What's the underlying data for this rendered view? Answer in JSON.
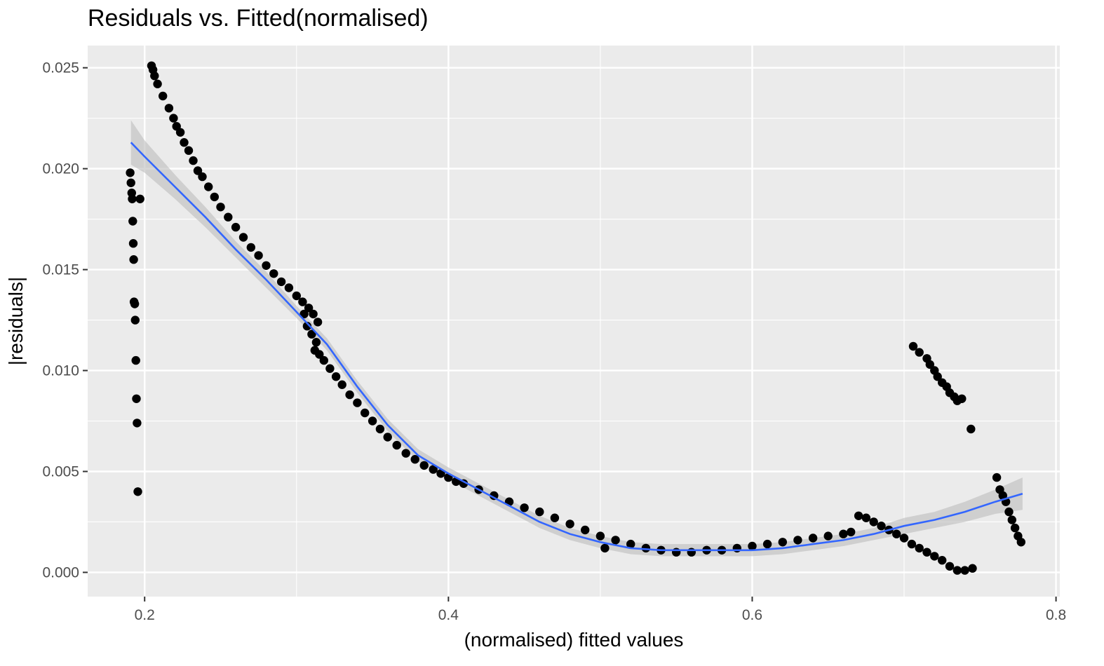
{
  "chart_data": {
    "type": "scatter",
    "title": "Residuals vs. Fitted(normalised)",
    "xlabel": "(normalised) fitted values",
    "ylabel": "|residuals|",
    "xlim": [
      0.1625,
      0.8025
    ],
    "ylim": [
      -0.0012,
      0.0261
    ],
    "x_ticks": [
      0.2,
      0.4,
      0.6,
      0.8
    ],
    "x_tick_labels": [
      "0.2",
      "0.4",
      "0.6",
      "0.8"
    ],
    "y_ticks": [
      0.0,
      0.005,
      0.01,
      0.015,
      0.02,
      0.025
    ],
    "y_tick_labels": [
      "0.000",
      "0.005",
      "0.010",
      "0.015",
      "0.020",
      "0.025"
    ],
    "grid": true,
    "legend": "none",
    "colors": {
      "panel": "#ebebeb",
      "grid": "#ffffff",
      "points": "#000000",
      "smooth_line": "#3366ff",
      "confidence_band": "#bdbdbd"
    },
    "series": [
      {
        "type": "scatter",
        "values_description_free": true,
        "x": [
          0.1905,
          0.191,
          0.1915,
          0.1918,
          0.1922,
          0.1925,
          0.1928,
          0.193,
          0.1935,
          0.1938,
          0.1942,
          0.1946,
          0.195,
          0.1955,
          0.197,
          0.2045,
          0.2055,
          0.2065,
          0.2085,
          0.212,
          0.216,
          0.219,
          0.221,
          0.2235,
          0.226,
          0.229,
          0.232,
          0.235,
          0.238,
          0.242,
          0.246,
          0.25,
          0.255,
          0.26,
          0.265,
          0.27,
          0.275,
          0.28,
          0.285,
          0.29,
          0.295,
          0.3,
          0.304,
          0.308,
          0.311,
          0.314,
          0.305,
          0.31,
          0.313,
          0.307,
          0.312,
          0.315,
          0.318,
          0.322,
          0.326,
          0.33,
          0.335,
          0.34,
          0.345,
          0.35,
          0.355,
          0.36,
          0.366,
          0.372,
          0.378,
          0.384,
          0.39,
          0.395,
          0.4,
          0.405,
          0.41,
          0.42,
          0.43,
          0.44,
          0.45,
          0.46,
          0.47,
          0.48,
          0.49,
          0.5,
          0.503,
          0.51,
          0.52,
          0.53,
          0.54,
          0.55,
          0.56,
          0.57,
          0.58,
          0.59,
          0.6,
          0.61,
          0.62,
          0.63,
          0.64,
          0.65,
          0.66,
          0.665,
          0.67,
          0.675,
          0.68,
          0.685,
          0.69,
          0.695,
          0.7,
          0.705,
          0.71,
          0.715,
          0.72,
          0.725,
          0.73,
          0.735,
          0.74,
          0.745,
          0.706,
          0.71,
          0.715,
          0.717,
          0.72,
          0.722,
          0.725,
          0.728,
          0.73,
          0.733,
          0.735,
          0.738,
          0.744,
          0.761,
          0.763,
          0.765,
          0.767,
          0.769,
          0.771,
          0.773,
          0.775,
          0.777
        ],
        "y": [
          0.0198,
          0.0193,
          0.0188,
          0.0185,
          0.0174,
          0.0163,
          0.0155,
          0.0134,
          0.0133,
          0.0125,
          0.0105,
          0.0086,
          0.0074,
          0.004,
          0.0185,
          0.0251,
          0.0249,
          0.0246,
          0.0242,
          0.0236,
          0.023,
          0.0225,
          0.0221,
          0.0218,
          0.0213,
          0.0209,
          0.0204,
          0.0199,
          0.0196,
          0.0191,
          0.0186,
          0.0181,
          0.0176,
          0.0171,
          0.0166,
          0.0161,
          0.0157,
          0.0152,
          0.0148,
          0.0144,
          0.0141,
          0.0137,
          0.0134,
          0.0131,
          0.0128,
          0.0124,
          0.0128,
          0.0118,
          0.0114,
          0.0122,
          0.011,
          0.0108,
          0.0105,
          0.0101,
          0.0097,
          0.0093,
          0.0088,
          0.0084,
          0.0079,
          0.0075,
          0.0071,
          0.0067,
          0.0063,
          0.0059,
          0.0056,
          0.0053,
          0.0051,
          0.0049,
          0.0047,
          0.0045,
          0.0044,
          0.0041,
          0.0038,
          0.0035,
          0.0032,
          0.003,
          0.0027,
          0.0024,
          0.0021,
          0.0018,
          0.0012,
          0.0016,
          0.0014,
          0.0012,
          0.0011,
          0.001,
          0.001,
          0.0011,
          0.0011,
          0.0012,
          0.0013,
          0.0014,
          0.0015,
          0.0016,
          0.0017,
          0.0018,
          0.0019,
          0.002,
          0.0028,
          0.0027,
          0.0025,
          0.0023,
          0.0021,
          0.0019,
          0.0017,
          0.0014,
          0.0012,
          0.001,
          0.0008,
          0.0006,
          0.0003,
          0.0001,
          0.0001,
          0.0002,
          0.0112,
          0.0109,
          0.0106,
          0.0103,
          0.01,
          0.0097,
          0.0094,
          0.0092,
          0.0089,
          0.0087,
          0.0085,
          0.0086,
          0.0071,
          0.0047,
          0.0041,
          0.0038,
          0.0035,
          0.003,
          0.0026,
          0.0022,
          0.0018,
          0.0015
        ]
      },
      {
        "type": "line",
        "x": [
          0.191,
          0.2,
          0.22,
          0.24,
          0.26,
          0.28,
          0.3,
          0.32,
          0.34,
          0.36,
          0.38,
          0.4,
          0.42,
          0.44,
          0.46,
          0.48,
          0.5,
          0.52,
          0.54,
          0.56,
          0.58,
          0.6,
          0.62,
          0.64,
          0.66,
          0.68,
          0.7,
          0.72,
          0.74,
          0.76,
          0.778
        ],
        "y": [
          0.0213,
          0.0206,
          0.0191,
          0.0176,
          0.016,
          0.0145,
          0.0129,
          0.0113,
          0.0092,
          0.0073,
          0.0058,
          0.0049,
          0.0041,
          0.0033,
          0.0025,
          0.0019,
          0.0015,
          0.0012,
          0.0011,
          0.0011,
          0.0011,
          0.0011,
          0.0012,
          0.0014,
          0.0016,
          0.0019,
          0.0023,
          0.0026,
          0.003,
          0.0035,
          0.0039
        ],
        "band_lower": [
          0.0202,
          0.0198,
          0.0185,
          0.0171,
          0.0156,
          0.0141,
          0.0126,
          0.011,
          0.0089,
          0.007,
          0.0055,
          0.0046,
          0.0038,
          0.003,
          0.0022,
          0.0016,
          0.0012,
          0.0009,
          0.0008,
          0.0008,
          0.0008,
          0.0008,
          0.0009,
          0.0011,
          0.0013,
          0.0016,
          0.0019,
          0.0022,
          0.0025,
          0.0029,
          0.0031
        ]
      }
    ]
  }
}
